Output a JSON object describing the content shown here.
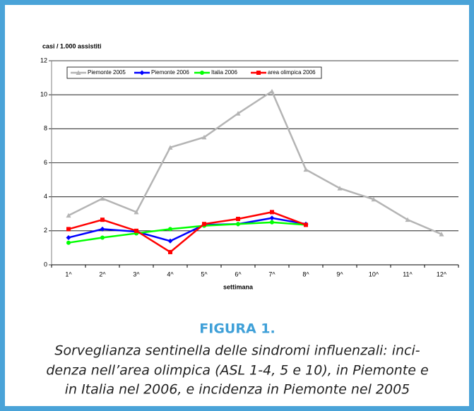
{
  "chart_data": {
    "type": "line",
    "y_label": "casi / 1.000 assistiti",
    "x_label": "settimana",
    "categories": [
      "1^",
      "2^",
      "3^",
      "4^",
      "5^",
      "6^",
      "7^",
      "8^",
      "9^",
      "10^",
      "11^",
      "12^"
    ],
    "series": [
      {
        "name": "Piemonte 2005",
        "color": "#b4b4b4",
        "marker": "triangle",
        "values": [
          2.9,
          3.9,
          3.1,
          6.9,
          7.5,
          8.9,
          10.2,
          5.6,
          4.5,
          3.85,
          2.65,
          1.8
        ]
      },
      {
        "name": "Piemonte 2006",
        "color": "#0000ff",
        "marker": "diamond",
        "values": [
          1.6,
          2.1,
          1.95,
          1.4,
          2.35,
          2.4,
          2.75,
          2.4,
          null,
          null,
          null,
          null
        ]
      },
      {
        "name": "Italia 2006",
        "color": "#00ff00",
        "marker": "circle",
        "values": [
          1.3,
          1.6,
          1.85,
          2.1,
          2.3,
          2.4,
          2.5,
          2.35,
          null,
          null,
          null,
          null
        ]
      },
      {
        "name": "area olimpica 2006",
        "color": "#ff0000",
        "marker": "square",
        "values": [
          2.1,
          2.65,
          2.0,
          0.75,
          2.4,
          2.7,
          3.1,
          2.35,
          null,
          null,
          null,
          null
        ]
      }
    ],
    "ylim": [
      0,
      12
    ],
    "yticks": [
      0,
      2,
      4,
      6,
      8,
      10,
      12
    ],
    "grid": true
  },
  "caption": {
    "label": "FIGURA 1.",
    "lines": [
      "Sorveglianza sentinella delle sindromi influenzali: inci-",
      "denza nell’area olimpica (ASL 1-4, 5 e 10), in Piemonte e",
      "in Italia nel 2006, e incidenza in Piemonte nel 2005"
    ]
  }
}
